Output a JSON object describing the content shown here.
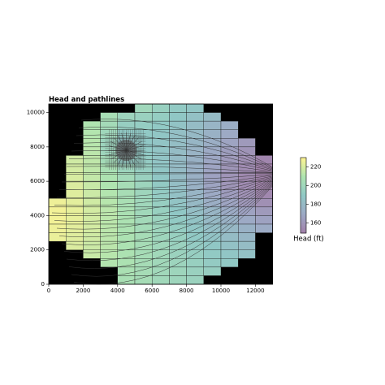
{
  "chart_data": {
    "type": "heatmap",
    "title": "Head and pathlines",
    "xlim": [
      0,
      13000
    ],
    "ylim": [
      0,
      10500
    ],
    "xticks": [
      0,
      2000,
      4000,
      6000,
      8000,
      10000,
      12000
    ],
    "yticks": [
      0,
      2000,
      4000,
      6000,
      8000,
      10000
    ],
    "x": [
      500,
      1500,
      2500,
      3500,
      4500,
      5500,
      6500,
      7500,
      8500,
      9500,
      10500,
      11500,
      12500
    ],
    "y": [
      10250,
      9750,
      9250,
      8750,
      8250,
      7750,
      7250,
      6750,
      6250,
      5750,
      5250,
      4750,
      4250,
      3750,
      3250,
      2750,
      2250,
      1750,
      1250,
      750,
      250
    ],
    "values": [
      [
        null,
        null,
        null,
        null,
        null,
        200,
        195,
        191,
        188,
        null,
        null,
        null,
        null
      ],
      [
        null,
        null,
        null,
        205,
        198,
        196,
        193,
        189,
        185,
        181,
        null,
        null,
        null
      ],
      [
        null,
        null,
        210,
        203,
        194,
        193,
        190,
        186,
        182,
        177,
        173,
        null,
        null
      ],
      [
        null,
        null,
        211,
        200,
        190,
        190,
        188,
        184,
        180,
        175,
        170,
        null,
        null
      ],
      [
        null,
        null,
        212,
        198,
        186,
        189,
        187,
        183,
        178,
        173,
        167,
        162,
        null
      ],
      [
        null,
        null,
        213,
        199,
        184,
        190,
        187,
        182,
        176,
        170,
        164,
        159,
        null
      ],
      [
        null,
        218,
        214,
        203,
        192,
        192,
        187,
        181,
        175,
        168,
        162,
        157,
        152
      ],
      [
        null,
        219,
        214,
        206,
        198,
        194,
        188,
        181,
        174,
        167,
        160,
        155,
        150
      ],
      [
        null,
        220,
        215,
        209,
        202,
        196,
        189,
        182,
        174,
        166,
        159,
        154,
        150
      ],
      [
        null,
        221,
        216,
        210,
        204,
        198,
        191,
        183,
        175,
        167,
        160,
        155,
        151
      ],
      [
        null,
        222,
        217,
        211,
        205,
        199,
        192,
        185,
        177,
        170,
        163,
        158,
        153
      ],
      [
        226,
        223,
        218,
        212,
        206,
        200,
        194,
        187,
        180,
        173,
        167,
        161,
        157
      ],
      [
        227,
        224,
        219,
        213,
        207,
        201,
        195,
        189,
        183,
        177,
        171,
        166,
        162
      ],
      [
        227,
        224,
        219,
        213,
        208,
        202,
        197,
        191,
        186,
        180,
        175,
        170,
        166
      ],
      [
        226,
        223,
        219,
        213,
        208,
        203,
        198,
        193,
        188,
        183,
        179,
        175,
        171
      ],
      [
        225,
        222,
        218,
        213,
        208,
        204,
        199,
        195,
        190,
        186,
        182,
        178,
        null
      ],
      [
        null,
        221,
        217,
        213,
        208,
        204,
        200,
        196,
        192,
        189,
        185,
        182,
        null
      ],
      [
        null,
        null,
        216,
        212,
        208,
        204,
        201,
        197,
        194,
        191,
        188,
        185,
        null
      ],
      [
        null,
        null,
        null,
        211,
        208,
        204,
        201,
        198,
        195,
        192,
        190,
        null,
        null
      ],
      [
        null,
        null,
        null,
        null,
        207,
        204,
        201,
        199,
        196,
        194,
        null,
        null,
        null
      ],
      [
        null,
        null,
        null,
        null,
        206,
        204,
        201,
        199,
        197,
        null,
        null,
        null,
        null
      ]
    ],
    "colormap": "viridis",
    "alpha": 0.5,
    "clim": [
      149,
      230
    ],
    "cticks": [
      160,
      180,
      200,
      220
    ],
    "colorbar_label": "Head (ft)"
  }
}
